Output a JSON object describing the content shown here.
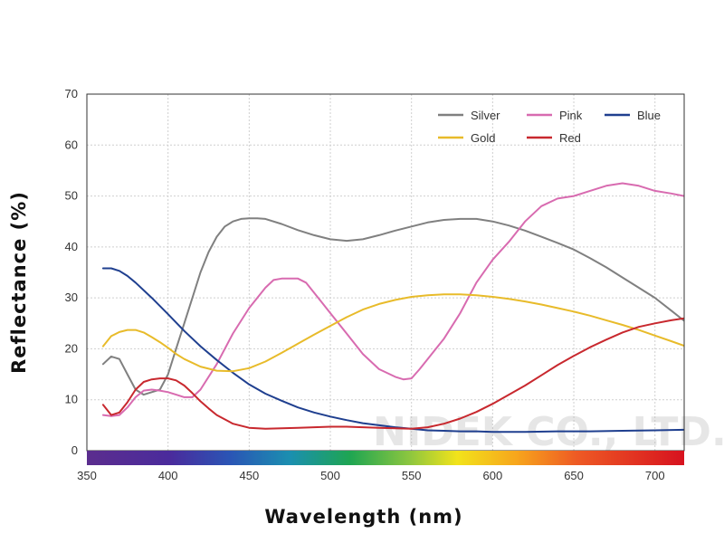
{
  "chart_data": {
    "type": "line",
    "xlabel": "Wavelength (nm)",
    "ylabel": "Reflectance (%)",
    "xlim": [
      350,
      718
    ],
    "ylim": [
      0,
      70
    ],
    "x_ticks": [
      350,
      400,
      450,
      500,
      550,
      600,
      650,
      700
    ],
    "y_ticks": [
      0,
      10,
      20,
      30,
      40,
      50,
      60,
      70
    ],
    "grid": true,
    "legend_position": "top-right",
    "watermark": "NIDEK CO., LTD.",
    "spectrum_bar": true,
    "series": [
      {
        "name": "Silver",
        "color": "#808080",
        "x": [
          360,
          365,
          370,
          375,
          380,
          385,
          390,
          395,
          400,
          405,
          410,
          415,
          420,
          425,
          430,
          435,
          440,
          445,
          450,
          455,
          460,
          470,
          480,
          490,
          500,
          510,
          520,
          530,
          540,
          550,
          560,
          570,
          580,
          590,
          600,
          610,
          620,
          630,
          640,
          650,
          660,
          670,
          680,
          690,
          700,
          710,
          718
        ],
        "y": [
          17,
          18.5,
          18,
          15,
          12,
          11,
          11.5,
          12,
          15,
          20,
          25,
          30,
          35,
          39,
          42,
          44,
          45,
          45.5,
          45.6,
          45.6,
          45.5,
          44.5,
          43.3,
          42.3,
          41.5,
          41.2,
          41.5,
          42.3,
          43.2,
          44,
          44.8,
          45.3,
          45.5,
          45.5,
          45,
          44.2,
          43.2,
          42,
          40.8,
          39.5,
          37.8,
          36,
          34,
          32,
          30,
          27.5,
          25.5
        ]
      },
      {
        "name": "Pink",
        "color": "#d86bb0",
        "x": [
          360,
          365,
          370,
          375,
          380,
          385,
          390,
          395,
          400,
          405,
          410,
          415,
          420,
          430,
          440,
          450,
          455,
          460,
          465,
          470,
          475,
          480,
          485,
          490,
          495,
          500,
          510,
          520,
          530,
          540,
          545,
          550,
          555,
          560,
          570,
          580,
          590,
          600,
          610,
          620,
          630,
          640,
          650,
          660,
          670,
          680,
          690,
          700,
          710,
          718
        ],
        "y": [
          7,
          6.8,
          7,
          8.5,
          10.5,
          11.8,
          12,
          11.8,
          11.5,
          11,
          10.5,
          10.5,
          12,
          17,
          23,
          28,
          30,
          32,
          33.5,
          33.8,
          33.8,
          33.8,
          33,
          31,
          29,
          27,
          23,
          19,
          16,
          14.5,
          14,
          14.2,
          16,
          18,
          22,
          27,
          33,
          37.5,
          41,
          45,
          48,
          49.5,
          50,
          51,
          52,
          52.5,
          52,
          51,
          50.5,
          50
        ]
      },
      {
        "name": "Blue",
        "color": "#1f3f8f",
        "x": [
          360,
          365,
          370,
          375,
          380,
          390,
          400,
          410,
          420,
          430,
          440,
          450,
          460,
          470,
          480,
          490,
          500,
          510,
          520,
          530,
          540,
          550,
          560,
          570,
          580,
          590,
          600,
          610,
          620,
          640,
          660,
          680,
          700,
          718
        ],
        "y": [
          35.8,
          35.8,
          35.3,
          34.3,
          33,
          30,
          26.8,
          23.5,
          20.5,
          17.8,
          15.3,
          13,
          11.2,
          9.8,
          8.5,
          7.5,
          6.7,
          6,
          5.4,
          5,
          4.6,
          4.3,
          4,
          3.9,
          3.8,
          3.8,
          3.7,
          3.7,
          3.7,
          3.8,
          3.8,
          3.9,
          4,
          4.1
        ]
      },
      {
        "name": "Gold",
        "color": "#e8bb2a",
        "x": [
          360,
          365,
          370,
          375,
          380,
          385,
          390,
          395,
          400,
          405,
          410,
          420,
          430,
          440,
          450,
          460,
          470,
          480,
          490,
          500,
          510,
          520,
          530,
          540,
          550,
          560,
          570,
          580,
          590,
          600,
          610,
          620,
          630,
          640,
          650,
          660,
          670,
          680,
          690,
          700,
          710,
          718
        ],
        "y": [
          20.5,
          22.5,
          23.3,
          23.7,
          23.7,
          23.2,
          22.3,
          21.3,
          20.2,
          19,
          18,
          16.5,
          15.7,
          15.6,
          16.2,
          17.5,
          19.2,
          21,
          22.8,
          24.5,
          26.2,
          27.7,
          28.8,
          29.6,
          30.2,
          30.5,
          30.7,
          30.7,
          30.5,
          30.2,
          29.8,
          29.3,
          28.7,
          28,
          27.3,
          26.5,
          25.6,
          24.7,
          23.7,
          22.6,
          21.5,
          20.6
        ]
      },
      {
        "name": "Red",
        "color": "#c8282e",
        "x": [
          360,
          365,
          370,
          375,
          380,
          385,
          390,
          395,
          400,
          405,
          410,
          415,
          420,
          425,
          430,
          440,
          450,
          460,
          470,
          480,
          490,
          500,
          510,
          520,
          530,
          540,
          550,
          560,
          570,
          580,
          590,
          600,
          610,
          620,
          630,
          640,
          650,
          660,
          670,
          680,
          690,
          700,
          710,
          718
        ],
        "y": [
          9,
          7,
          7.5,
          9.5,
          12,
          13.5,
          14,
          14.2,
          14.2,
          13.8,
          12.8,
          11.3,
          9.7,
          8.3,
          7,
          5.3,
          4.5,
          4.3,
          4.4,
          4.5,
          4.6,
          4.7,
          4.7,
          4.6,
          4.5,
          4.4,
          4.3,
          4.6,
          5.3,
          6.3,
          7.6,
          9.2,
          11,
          12.8,
          14.8,
          16.8,
          18.6,
          20.3,
          21.8,
          23.2,
          24.3,
          25,
          25.6,
          26
        ]
      }
    ],
    "legend": [
      {
        "name": "Silver",
        "color": "#808080",
        "row": 0,
        "col": 0
      },
      {
        "name": "Pink",
        "color": "#d86bb0",
        "row": 0,
        "col": 1
      },
      {
        "name": "Blue",
        "color": "#1f3f8f",
        "row": 0,
        "col": 2
      },
      {
        "name": "Gold",
        "color": "#e8bb2a",
        "row": 1,
        "col": 0
      },
      {
        "name": "Red",
        "color": "#c8282e",
        "row": 1,
        "col": 1
      }
    ]
  }
}
